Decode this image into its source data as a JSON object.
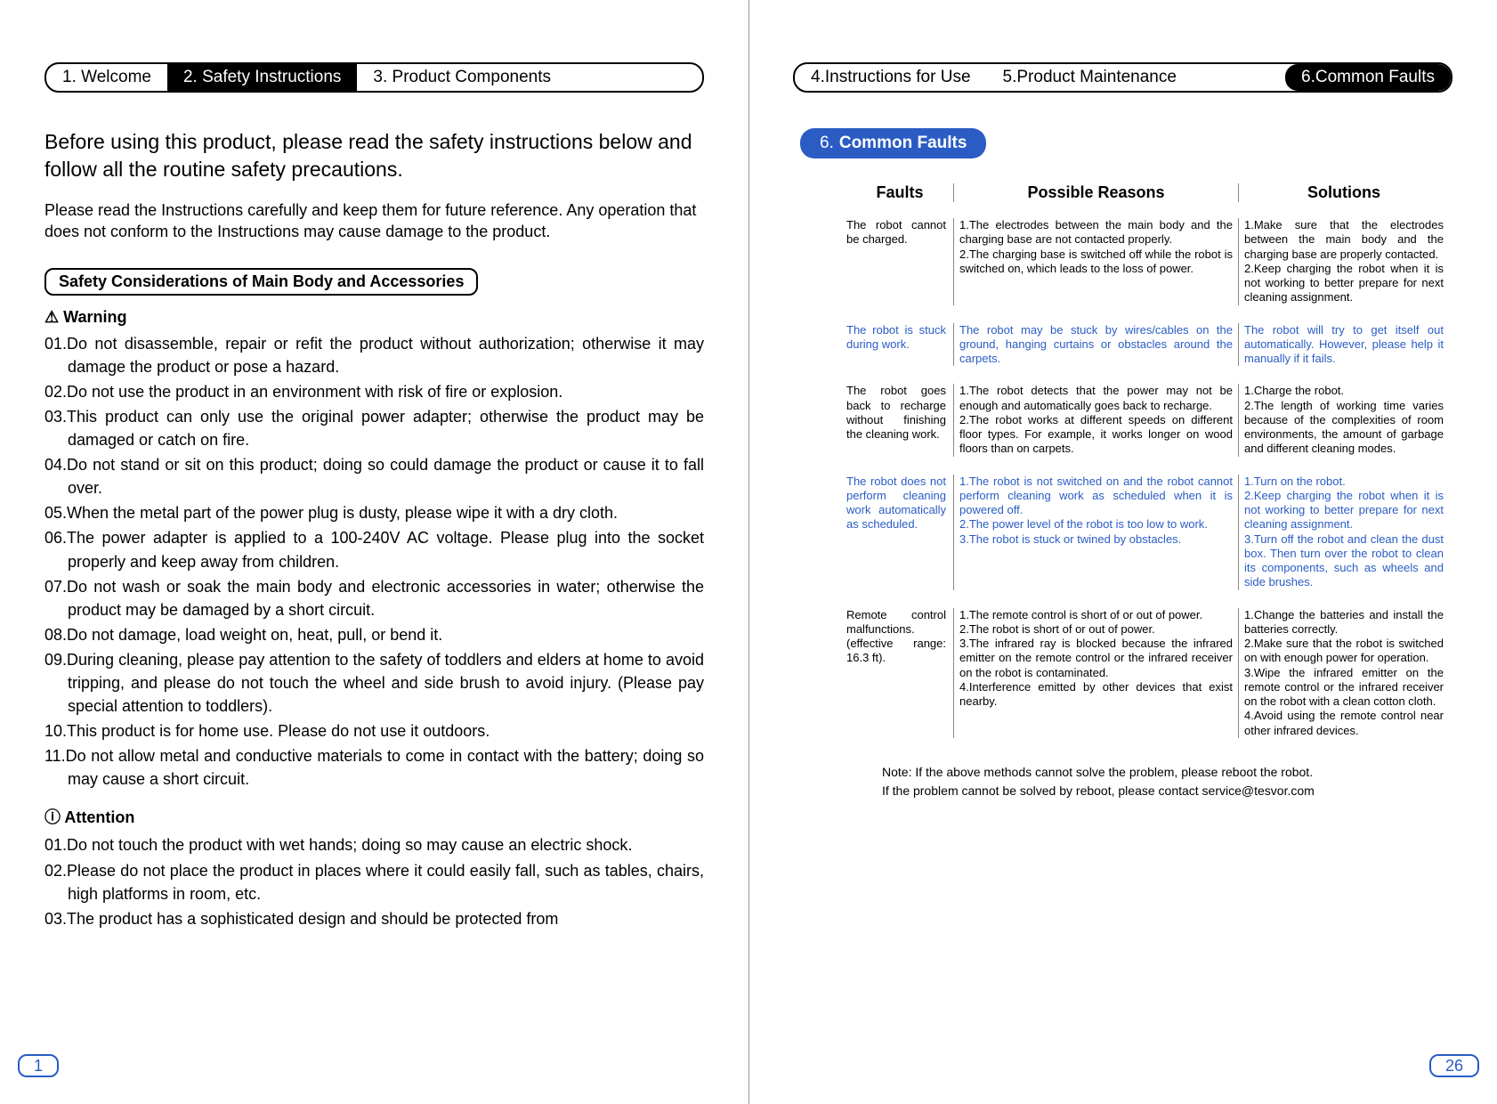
{
  "tabs_left": {
    "t1": "1. Welcome",
    "t2": "2. Safety Instructions",
    "t3": "3. Product Components"
  },
  "tabs_right": {
    "t4": "4.Instructions for Use",
    "t5": "5.Product Maintenance",
    "t6": "6.Common Faults"
  },
  "left": {
    "intro": "Before using this product, please read the safety instructions below and follow all the routine safety precautions.",
    "subintro": "Please read the Instructions carefully and keep them for future reference. Any operation that does not conform to the Instructions may cause damage to the product.",
    "section_title": "Safety Considerations of Main Body and Accessories",
    "warning_label": "⚠ Warning",
    "warnings": {
      "w01": "01.Do not disassemble, repair or refit the product without authorization; otherwise it may damage the product or pose a hazard.",
      "w02": "02.Do not use the product in an environment with risk of fire or explosion.",
      "w03": "03.This product can only use the original power adapter; otherwise the product may be damaged or catch on fire.",
      "w04": "04.Do not stand or sit on this product; doing so could damage the product or cause it to fall over.",
      "w05": "05.When the metal part of the power plug is dusty, please wipe it with a dry cloth.",
      "w06": "06.The power adapter is applied to a 100-240V AC voltage. Please plug into the socket properly and keep away from children.",
      "w07": "07.Do not wash or soak the main body and electronic accessories in water; otherwise the product may be damaged by a short circuit.",
      "w08": "08.Do not damage, load weight on, heat, pull, or bend it.",
      "w09": "09.During cleaning, please pay attention to the safety of toddlers and elders at home to avoid tripping, and please do not touch the wheel and side brush to avoid injury. (Please pay special attention to toddlers).",
      "w10": "10.This product is for home use. Please do not use it outdoors.",
      "w11": "11.Do not allow metal and conductive materials to come in contact with the battery; doing so may cause a short circuit."
    },
    "attention_label": "ⓘ Attention",
    "attentions": {
      "a01": "01.Do not touch the product with wet hands; doing so may cause an electric shock.",
      "a02": "02.Please do not place the product in places where it could easily fall, such as tables, chairs, high platforms in room, etc.",
      "a03": "03.The product has a sophisticated design and should be protected from"
    },
    "page_no": "1"
  },
  "right": {
    "chip_num": "6.",
    "chip_label": "Common Faults",
    "headers": {
      "f": "Faults",
      "r": "Possible Reasons",
      "s": "Solutions"
    },
    "rows": {
      "r1": {
        "f": "The robot cannot be charged.",
        "r": "1.The electrodes between the main body and the charging base are not contacted properly.\n2.The charging base is switched off while the robot is switched on, which leads to the loss of power.",
        "s": "1.Make sure that the electrodes between the main body and the charging base are properly contacted.\n2.Keep charging the robot when it is not working to better prepare for next cleaning assignment."
      },
      "r2": {
        "f": "The robot is stuck during work.",
        "r": "The robot may be stuck by wires/cables on the ground, hanging curtains or obstacles around the carpets.",
        "s": "The robot will try to get itself out automatically. However, please help it manually if it fails."
      },
      "r3": {
        "f": "The robot goes back to recharge without finishing the cleaning work.",
        "r": "1.The robot detects that the power may not be enough and automatically goes back to recharge.\n2.The robot works at different speeds on different floor types. For example, it works longer on wood floors than on carpets.",
        "s": "1.Charge the robot.\n2.The length of working time varies because of the complexities of room environments, the amount of garbage and different cleaning modes."
      },
      "r4": {
        "f": "The robot does not perform cleaning work automatically as scheduled.",
        "r": "1.The robot is not switched on and the robot cannot perform cleaning work as scheduled when it is powered off.\n2.The power level of the robot is too low to work.\n3.The robot is stuck or twined by obstacles.",
        "s": "1.Turn on the robot.\n2.Keep charging the robot when it is not working to better prepare for next cleaning assignment.\n3.Turn off the robot and clean the dust box. Then turn over the robot to clean its components, such as wheels and side brushes."
      },
      "r5": {
        "f": "Remote control malfunctions. (effective range: 16.3 ft).",
        "r": "1.The remote control is short of or out of power.\n2.The robot is short of or out of power.\n3.The infrared ray is blocked because the infrared emitter on the remote control or the infrared receiver on the robot is contaminated.\n4.Interference emitted by other devices that exist nearby.",
        "s": "1.Change the batteries and install the batteries correctly.\n2.Make sure that the robot is switched on with enough power for operation.\n3.Wipe the infrared emitter on the remote control or the infrared receiver on the robot with a clean cotton cloth.\n4.Avoid using the remote control near other infrared devices."
      }
    },
    "note1": "Note: If the above methods cannot solve the problem, please reboot the robot.",
    "note2": "If the problem cannot be solved by reboot, please contact service@tesvor.com",
    "page_no": "26"
  },
  "style": {
    "accent": "#2a5cc4",
    "text": "#000000",
    "row_blue": "#2a5cc4"
  }
}
